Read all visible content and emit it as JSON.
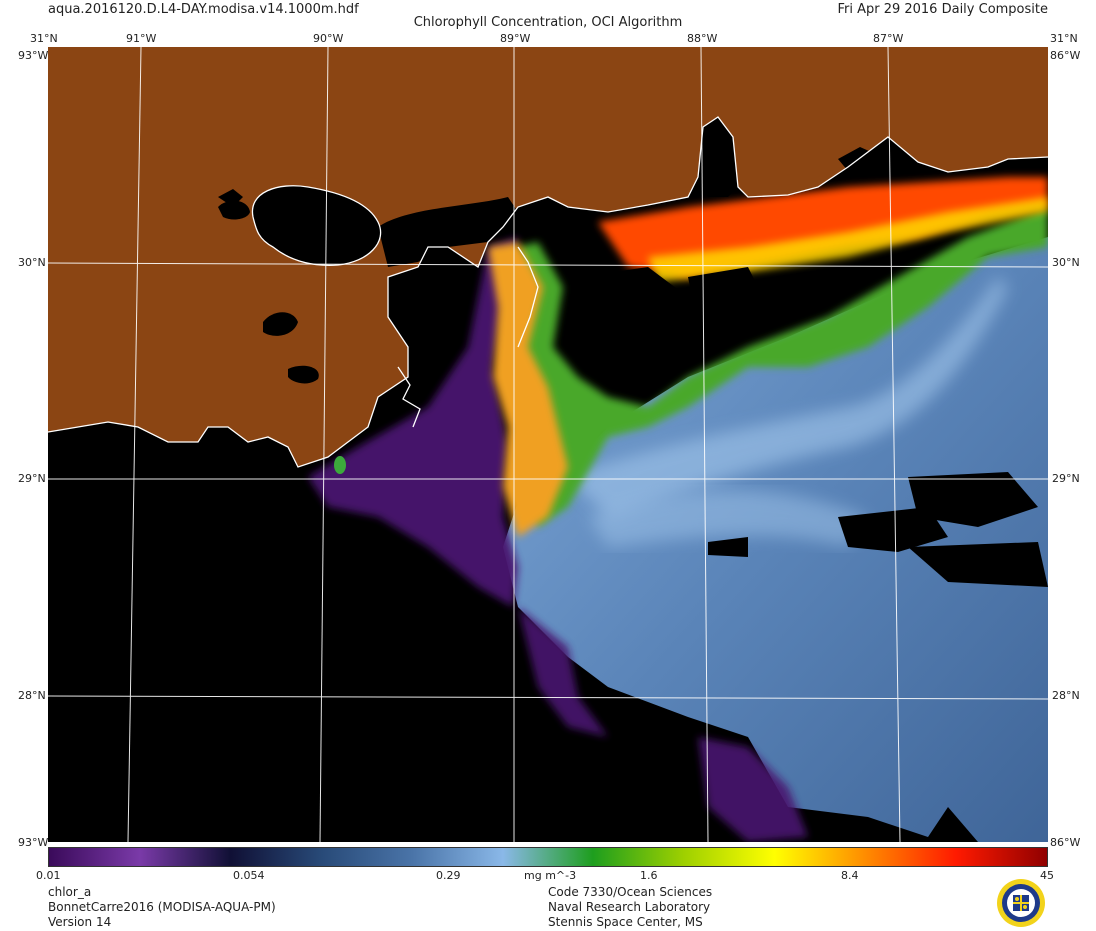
{
  "header": {
    "filename": "aqua.2016120.D.L4-DAY.modisa.v14.1000m.hdf",
    "title": "Chlorophyll Concentration, OCI Algorithm",
    "composite": "Fri Apr 29 2016 Daily Composite"
  },
  "map": {
    "lon_labels": [
      "91°W",
      "90°W",
      "89°W",
      "88°W",
      "87°W"
    ],
    "corner_lat_top": "31°N",
    "lat_labels": [
      "30°N",
      "29°N",
      "28°N"
    ],
    "edge_labels": [
      "86°W",
      "93°W"
    ],
    "colors": {
      "land": "#8b4513",
      "coast": "#ffffff",
      "grid": "#ffffff",
      "nodata": "#000000"
    }
  },
  "colorbar": {
    "ticks": [
      "0.01",
      "0.054",
      "0.29",
      "1.6",
      "8.4",
      "45"
    ],
    "units": "mg m^-3",
    "stops": [
      "#3a0a5a",
      "#7a3aa8",
      "#101035",
      "#284a78",
      "#4a74a8",
      "#8ab8e8",
      "#1e9e1e",
      "#9ed000",
      "#ffff00",
      "#ff8c00",
      "#ff1a00",
      "#900000"
    ]
  },
  "footer": {
    "left": [
      "chlor_a",
      "BonnetCarre2016 (MODISA-AQUA-PM)",
      "Version 14"
    ],
    "center": [
      "Code 7330/Ocean Sciences",
      "Naval Research Laboratory",
      "Stennis Space Center, MS"
    ]
  }
}
